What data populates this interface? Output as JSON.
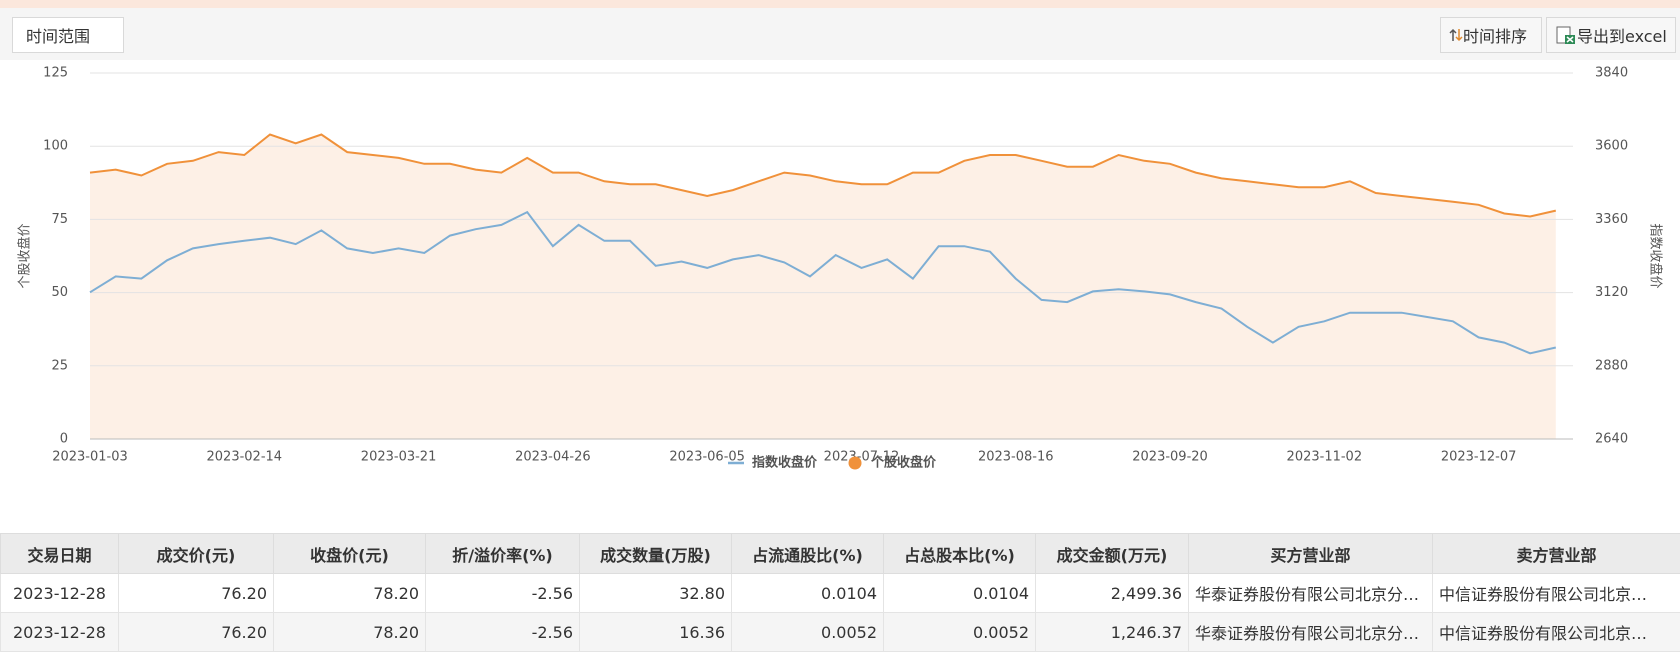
{
  "toolbar": {
    "time_range": "时间范围",
    "sort_button": "时间排序",
    "export_button": "导出到excel"
  },
  "chart_data": {
    "type": "line",
    "ylabel": "个股收盘价",
    "y2label": "指数收盘价",
    "categories": [
      "2023-01-03",
      null,
      null,
      null,
      null,
      null,
      "2023-02-14",
      null,
      null,
      null,
      null,
      null,
      "2023-03-21",
      null,
      null,
      null,
      null,
      null,
      "2023-04-26",
      null,
      null,
      null,
      null,
      null,
      "2023-06-05",
      null,
      null,
      null,
      null,
      null,
      "2023-07-12",
      null,
      null,
      null,
      null,
      null,
      "2023-08-16",
      null,
      null,
      null,
      null,
      null,
      "2023-09-20",
      null,
      null,
      null,
      null,
      null,
      "2023-11-02",
      null,
      null,
      null,
      null,
      null,
      "2023-12-07",
      null,
      null,
      null
    ],
    "series": [
      {
        "name": "指数收盘价",
        "color": "#7eaed4",
        "axis": "y2",
        "values": [
          3121,
          3173,
          3166,
          3226,
          3265,
          3279,
          3290,
          3300,
          3279,
          3324,
          3265,
          3250,
          3265,
          3250,
          3307,
          3328,
          3342,
          3384,
          3272,
          3342,
          3290,
          3290,
          3208,
          3222,
          3201,
          3229,
          3243,
          3219,
          3173,
          3243,
          3201,
          3229,
          3166,
          3272,
          3272,
          3254,
          3166,
          3096,
          3089,
          3124,
          3131,
          3124,
          3114,
          3089,
          3068,
          3008,
          2956,
          3008,
          3026,
          3054,
          3054,
          3054,
          3040,
          3026,
          2973,
          2956,
          2921,
          2940
        ]
      },
      {
        "name": "个股收盘价",
        "color": "#f0913a",
        "fill": "#fdf0e6",
        "values": [
          91,
          92,
          90,
          94,
          95,
          98,
          97,
          104,
          101,
          104,
          98,
          97,
          96,
          94,
          94,
          92,
          91,
          96,
          91,
          91,
          88,
          87,
          87,
          85,
          83,
          85,
          88,
          91,
          90,
          88,
          87,
          87,
          91,
          91,
          95,
          97,
          97,
          95,
          93,
          93,
          97,
          95,
          94,
          91,
          89,
          88,
          87,
          86,
          86,
          88,
          84,
          83,
          82,
          81,
          80,
          77,
          76,
          78
        ]
      }
    ],
    "ylim": [
      0,
      125
    ],
    "yticks": [
      0,
      25,
      50,
      75,
      100,
      125
    ],
    "y2lim": [
      2640,
      3840
    ],
    "y2ticks": [
      2640,
      2880,
      3120,
      3360,
      3600,
      3840
    ],
    "grid": true,
    "legend": "bottom"
  },
  "table": {
    "headers": [
      "交易日期",
      "成交价(元)",
      "收盘价(元)",
      "折/溢价率(%)",
      "成交数量(万股)",
      "占流通股比(%)",
      "占总股本比(%)",
      "成交金额(万元)",
      "买方营业部",
      "卖方营业部"
    ],
    "rows": [
      [
        "2023-12-28",
        "76.20",
        "78.20",
        "-2.56",
        "32.80",
        "0.0104",
        "0.0104",
        "2,499.36",
        "华泰证券股份有限公司北京分…",
        "中信证券股份有限公司北京…"
      ],
      [
        "2023-12-28",
        "76.20",
        "78.20",
        "-2.56",
        "16.36",
        "0.0052",
        "0.0052",
        "1,246.37",
        "华泰证券股份有限公司北京分…",
        "中信证券股份有限公司北京…"
      ]
    ]
  }
}
